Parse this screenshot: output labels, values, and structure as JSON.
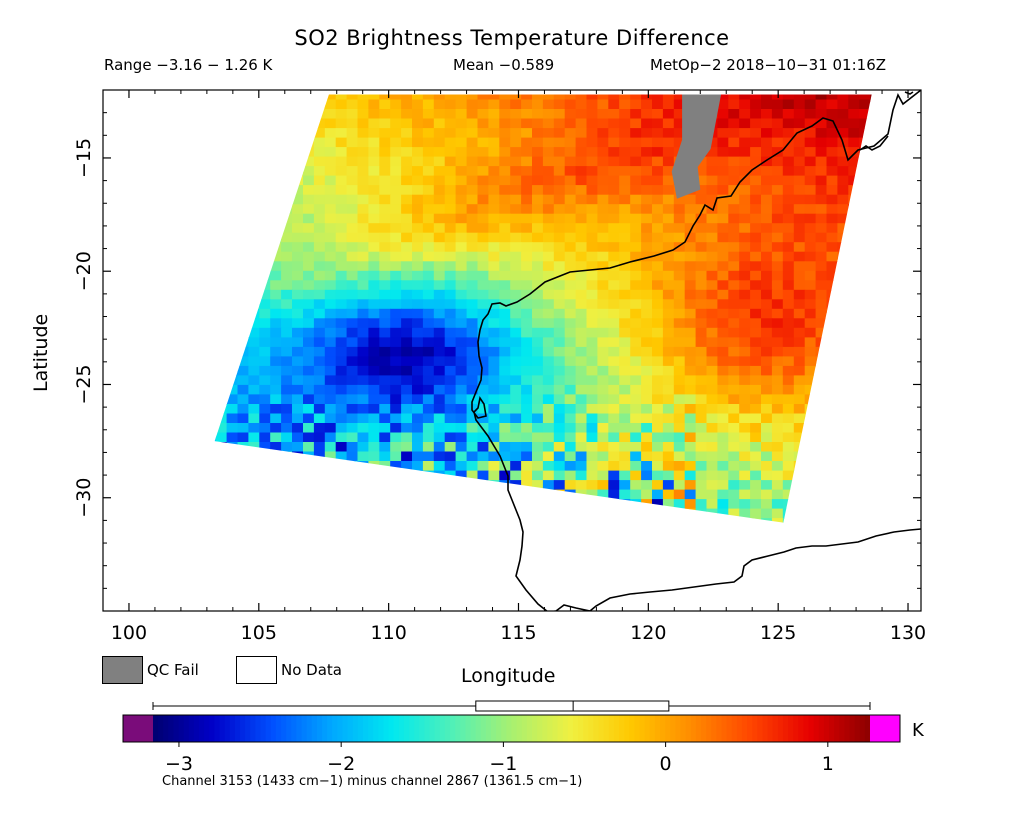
{
  "chart_data": {
    "type": "heatmap",
    "title": "SO2 Brightness Temperature Difference",
    "header": {
      "range": "Range −3.16 − 1.26 K",
      "mean": "Mean −0.589",
      "satellite": "MetOp−2 2018−10−31 01:16Z"
    },
    "xlabel": "Longitude",
    "ylabel": "Latitude",
    "xlim": [
      99,
      130.5
    ],
    "ylim": [
      -35,
      -12
    ],
    "x_ticks": [
      100,
      105,
      110,
      115,
      120,
      125,
      130
    ],
    "x_tick_labels": [
      "100",
      "105",
      "110",
      "115",
      "120",
      "125",
      "130"
    ],
    "y_ticks": [
      -15,
      -20,
      -25,
      -30
    ],
    "y_tick_labels": [
      "−15",
      "−20",
      "−25",
      "−30"
    ],
    "swath_corners": [
      [
        107.7,
        -12.2
      ],
      [
        128.6,
        -12.2
      ],
      [
        125.2,
        -31.1
      ],
      [
        103.3,
        -27.5
      ]
    ],
    "qc_fail_region": [
      [
        121.3,
        -12.2
      ],
      [
        122.8,
        -12.2
      ],
      [
        122.4,
        -14.6
      ],
      [
        121.9,
        -15.4
      ],
      [
        122.0,
        -16.4
      ],
      [
        121.1,
        -16.8
      ],
      [
        120.9,
        -15.6
      ],
      [
        121.3,
        -14.2
      ]
    ],
    "field_pattern": "Positive values (up to about 1.2 K, red) over the north-east of the swath along the Australian coast; negative values (down to about −2.5 K, blue) in a band south-west of it near 108–116 E, 22–28 S; noisy mixed values along the southern edge of the swath.",
    "colorbar": {
      "min": -3.3,
      "max": 1.45,
      "tick_values": [
        -3,
        -2,
        -1,
        0,
        1
      ],
      "tick_labels": [
        "−3",
        "−2",
        "−1",
        "0",
        "1"
      ],
      "unit": "K",
      "under_color": "#7a0c7a",
      "over_color": "#ff00ff",
      "stops": [
        "#000070",
        "#0000c8",
        "#0050ff",
        "#00a8ff",
        "#00e8f0",
        "#50f0b8",
        "#a8f070",
        "#f0f040",
        "#ffc800",
        "#ff8c00",
        "#ff4600",
        "#e60000",
        "#8c0000"
      ],
      "stops_range": [
        -3.16,
        1.26
      ]
    },
    "box_plot": {
      "min": -3.16,
      "q1": -1.17,
      "median": -0.57,
      "q3": 0.02,
      "max": 1.26,
      "mean": -0.589
    },
    "legend": [
      {
        "label": "QC Fail",
        "color": "#808080"
      },
      {
        "label": "No Data",
        "color": "#ffffff"
      }
    ],
    "footnote": "Channel 3153 (1433 cm−1) minus channel 2867 (1361.5 cm−1)"
  }
}
